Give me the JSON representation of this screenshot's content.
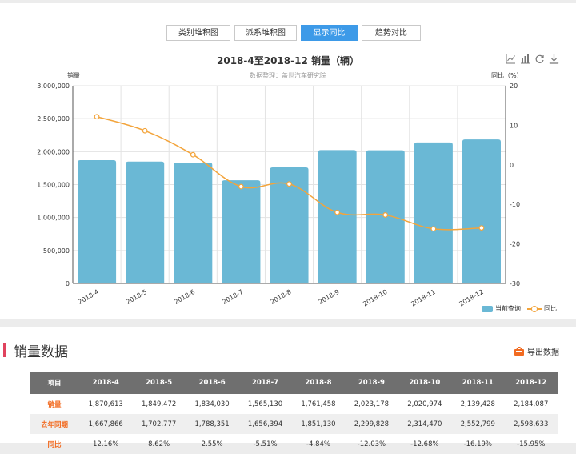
{
  "tabs": [
    {
      "label": "类别堆积图",
      "active": false
    },
    {
      "label": "派系堆积图",
      "active": false
    },
    {
      "label": "显示同比",
      "active": true
    },
    {
      "label": "趋势对比",
      "active": false
    }
  ],
  "toolbox": [
    "line-chart-icon",
    "bar-chart-icon",
    "refresh-icon",
    "download-icon"
  ],
  "chart_data": {
    "type": "bar",
    "title": "2018-4至2018-12 销量（辆）",
    "subtitle": "数据整理：盖世汽车研究院",
    "ylabel": "销量",
    "y2label": "同比（%）",
    "categories": [
      "2018-4",
      "2018-5",
      "2018-6",
      "2018-7",
      "2018-8",
      "2018-9",
      "2018-10",
      "2018-11",
      "2018-12"
    ],
    "ylim": [
      0,
      3000000
    ],
    "yticks": [
      "0",
      "500,000",
      "1,000,000",
      "1,500,000",
      "2,000,000",
      "2,500,000",
      "3,000,000"
    ],
    "y2lim": [
      -30,
      20
    ],
    "y2ticks": [
      "-30",
      "-20",
      "-10",
      "0",
      "10",
      "20"
    ],
    "series": [
      {
        "name": "当前查询",
        "type": "bar",
        "color": "#6ab8d5",
        "values": [
          1870613,
          1849472,
          1834030,
          1565130,
          1761458,
          2023178,
          2020974,
          2139428,
          2184087
        ]
      },
      {
        "name": "同比",
        "type": "line",
        "color": "#f3a43b",
        "axis": "right",
        "values": [
          12.16,
          8.62,
          2.55,
          -5.51,
          -4.84,
          -12.03,
          -12.68,
          -16.19,
          -15.95
        ]
      }
    ],
    "grid": true,
    "legend_position": "bottom-right"
  },
  "section": {
    "title": "销量数据",
    "export_label": "导出数据"
  },
  "table": {
    "headers": [
      "项目",
      "2018-4",
      "2018-5",
      "2018-6",
      "2018-7",
      "2018-8",
      "2018-9",
      "2018-10",
      "2018-11",
      "2018-12"
    ],
    "rows": [
      [
        "销量",
        "1,870,613",
        "1,849,472",
        "1,834,030",
        "1,565,130",
        "1,761,458",
        "2,023,178",
        "2,020,974",
        "2,139,428",
        "2,184,087"
      ],
      [
        "去年同期",
        "1,667,866",
        "1,702,777",
        "1,788,351",
        "1,656,394",
        "1,851,130",
        "2,299,828",
        "2,314,470",
        "2,552,799",
        "2,598,633"
      ],
      [
        "同比",
        "12.16%",
        "8.62%",
        "2.55%",
        "-5.51%",
        "-4.84%",
        "-12.03%",
        "-12.68%",
        "-16.19%",
        "-15.95%"
      ]
    ]
  }
}
